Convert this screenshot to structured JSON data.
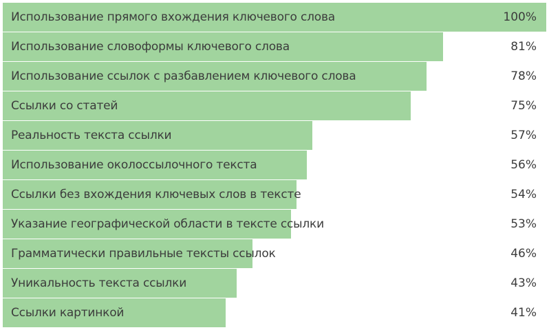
{
  "chart_data": {
    "type": "bar",
    "orientation": "horizontal",
    "title": "",
    "xlabel": "",
    "ylabel": "",
    "xlim": [
      0,
      100
    ],
    "grid": false,
    "legend": "none",
    "bar_color": "#a1d49e",
    "label_color": "#3c3c3c",
    "categories": [
      "Использование прямого вхождения ключевого слова",
      "Использование словоформы ключевого слова",
      "Использование ссылок с разбавлением ключевого слова",
      "Ссылки со статей",
      "Реальность текста ссылки",
      "Использование околоссылочного текста",
      "Ссылки без вхождения ключевых слов в тексте",
      "Указание географической области в тексте ссылки",
      "Грамматически правильные тексты ссылок",
      "Уникальность текста ссылки",
      "Ссылки картинкой"
    ],
    "values": [
      100,
      81,
      78,
      75,
      57,
      56,
      54,
      53,
      46,
      43,
      41
    ],
    "value_labels": [
      "100%",
      "81%",
      "78%",
      "75%",
      "57%",
      "56%",
      "54%",
      "53%",
      "46%",
      "43%",
      "41%"
    ]
  }
}
